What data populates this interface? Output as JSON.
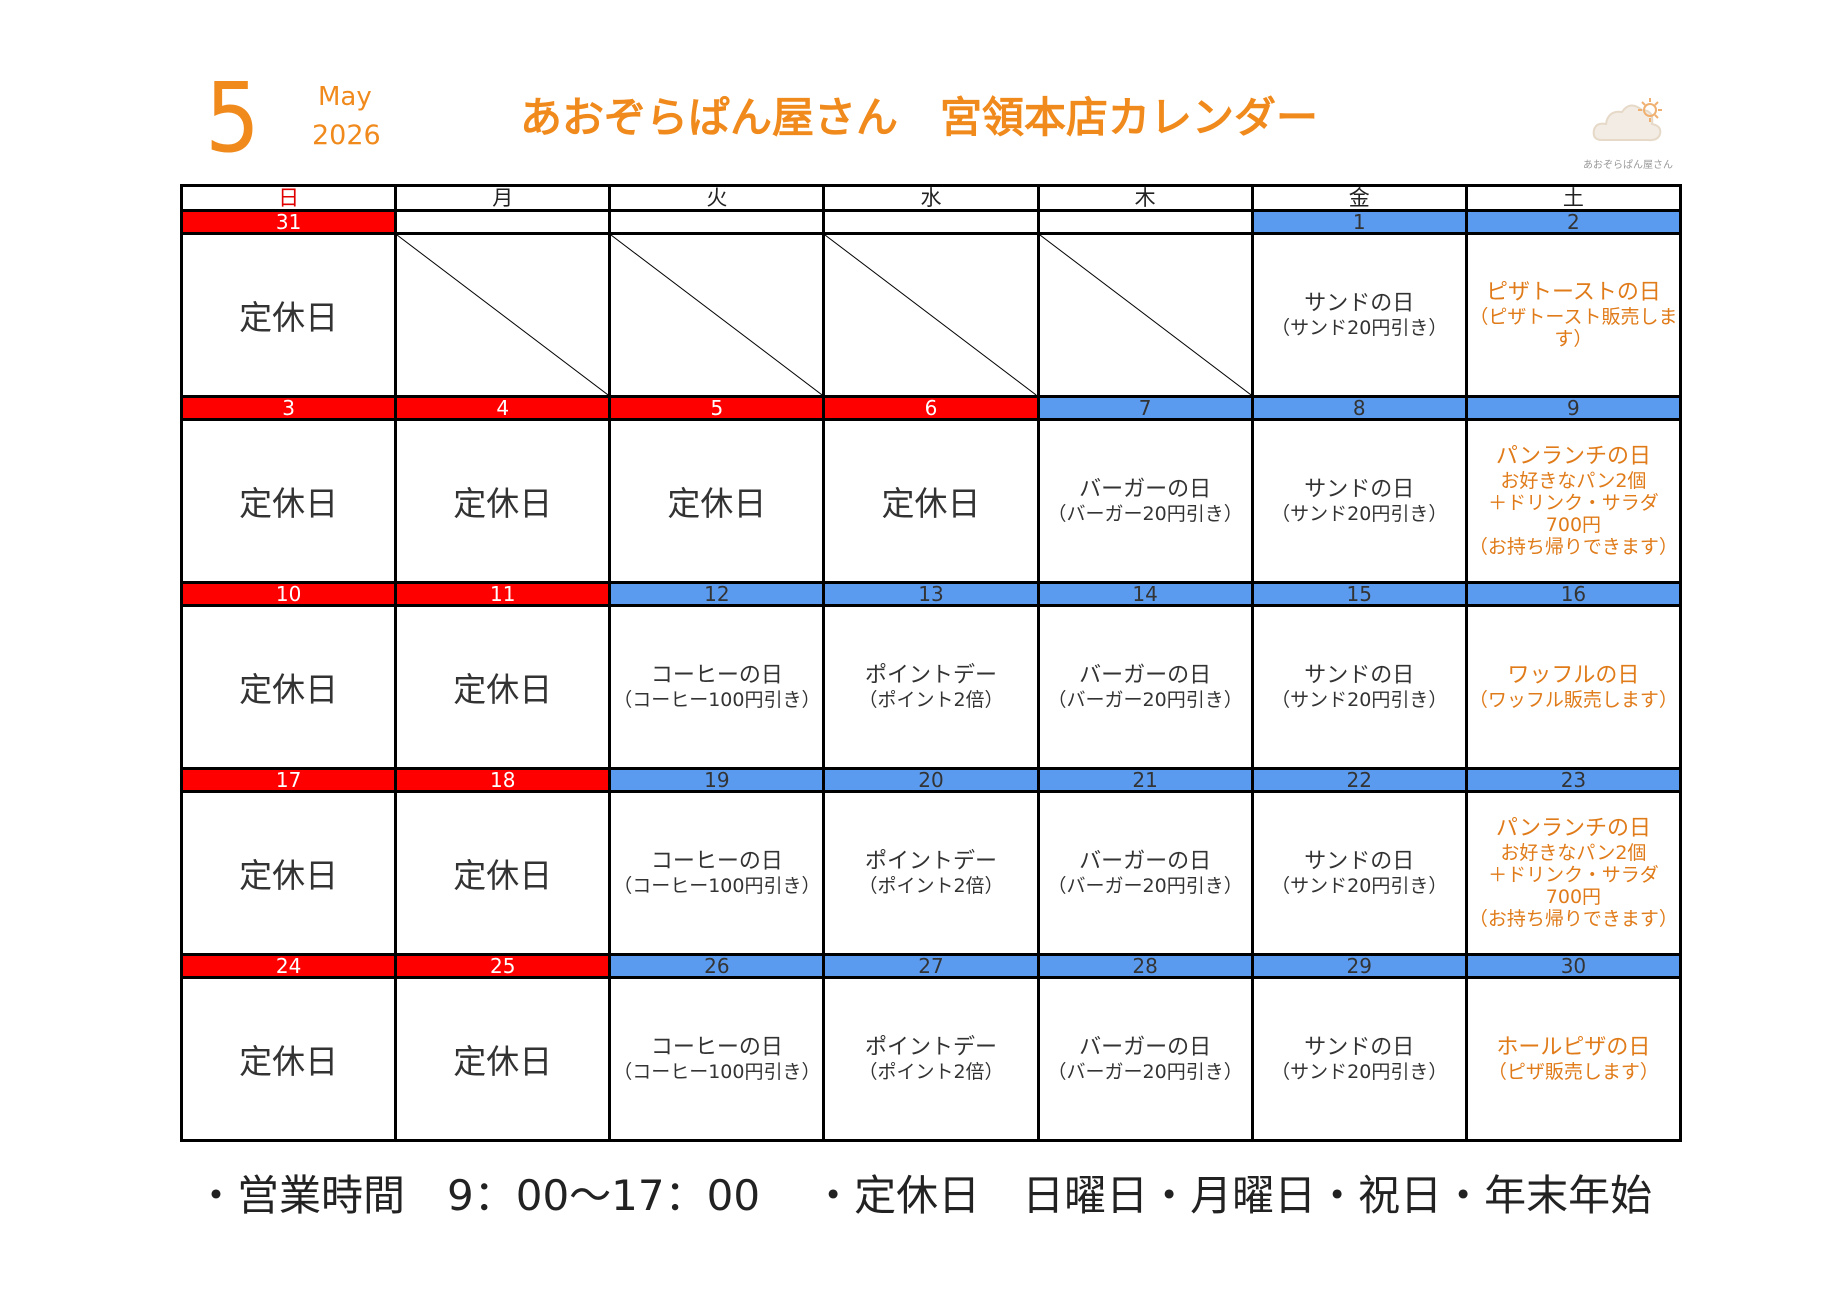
{
  "header": {
    "month": 5,
    "month_name": "May",
    "year": 2026,
    "title": "あおぞらぱん屋さん　宮領本店カレンダー",
    "logo_caption": "あおぞらぱん屋さん"
  },
  "weekdays": [
    "日",
    "月",
    "火",
    "水",
    "木",
    "金",
    "土"
  ],
  "weeks": [
    {
      "cells": [
        {
          "date": 31,
          "status": "closed",
          "lines": [
            "定休日"
          ]
        },
        {
          "status": "blank"
        },
        {
          "status": "blank"
        },
        {
          "status": "blank"
        },
        {
          "status": "blank"
        },
        {
          "date": 1,
          "status": "open",
          "lines": [
            "サンドの日",
            "（サンド20円引き）"
          ]
        },
        {
          "date": 2,
          "status": "open",
          "accent": true,
          "lines": [
            "ピザトーストの日",
            "（ピザトースト販売します）"
          ]
        }
      ]
    },
    {
      "cells": [
        {
          "date": 3,
          "status": "closed",
          "lines": [
            "定休日"
          ]
        },
        {
          "date": 4,
          "status": "closed",
          "lines": [
            "定休日"
          ]
        },
        {
          "date": 5,
          "status": "closed",
          "lines": [
            "定休日"
          ]
        },
        {
          "date": 6,
          "status": "closed",
          "lines": [
            "定休日"
          ]
        },
        {
          "date": 7,
          "status": "open",
          "lines": [
            "バーガーの日",
            "（バーガー20円引き）"
          ]
        },
        {
          "date": 8,
          "status": "open",
          "lines": [
            "サンドの日",
            "（サンド20円引き）"
          ]
        },
        {
          "date": 9,
          "status": "open",
          "accent": true,
          "lines": [
            "パンランチの日",
            "お好きなパン2個",
            "＋ドリンク・サラダ",
            "700円",
            "（お持ち帰りできます）"
          ]
        }
      ]
    },
    {
      "cells": [
        {
          "date": 10,
          "status": "closed",
          "lines": [
            "定休日"
          ]
        },
        {
          "date": 11,
          "status": "closed",
          "lines": [
            "定休日"
          ]
        },
        {
          "date": 12,
          "status": "open",
          "lines": [
            "コーヒーの日",
            "（コーヒー100円引き）"
          ]
        },
        {
          "date": 13,
          "status": "open",
          "lines": [
            "ポイントデー",
            "（ポイント2倍）"
          ]
        },
        {
          "date": 14,
          "status": "open",
          "lines": [
            "バーガーの日",
            "（バーガー20円引き）"
          ]
        },
        {
          "date": 15,
          "status": "open",
          "lines": [
            "サンドの日",
            "（サンド20円引き）"
          ]
        },
        {
          "date": 16,
          "status": "open",
          "accent": true,
          "lines": [
            "ワッフルの日",
            "（ワッフル販売します）"
          ]
        }
      ]
    },
    {
      "cells": [
        {
          "date": 17,
          "status": "closed",
          "lines": [
            "定休日"
          ]
        },
        {
          "date": 18,
          "status": "closed",
          "lines": [
            "定休日"
          ]
        },
        {
          "date": 19,
          "status": "open",
          "lines": [
            "コーヒーの日",
            "（コーヒー100円引き）"
          ]
        },
        {
          "date": 20,
          "status": "open",
          "lines": [
            "ポイントデー",
            "（ポイント2倍）"
          ]
        },
        {
          "date": 21,
          "status": "open",
          "lines": [
            "バーガーの日",
            "（バーガー20円引き）"
          ]
        },
        {
          "date": 22,
          "status": "open",
          "lines": [
            "サンドの日",
            "（サンド20円引き）"
          ]
        },
        {
          "date": 23,
          "status": "open",
          "accent": true,
          "lines": [
            "パンランチの日",
            "お好きなパン2個",
            "＋ドリンク・サラダ",
            "700円",
            "（お持ち帰りできます）"
          ]
        }
      ]
    },
    {
      "cells": [
        {
          "date": 24,
          "status": "closed",
          "lines": [
            "定休日"
          ]
        },
        {
          "date": 25,
          "status": "closed",
          "lines": [
            "定休日"
          ]
        },
        {
          "date": 26,
          "status": "open",
          "lines": [
            "コーヒーの日",
            "（コーヒー100円引き）"
          ]
        },
        {
          "date": 27,
          "status": "open",
          "lines": [
            "ポイントデー",
            "（ポイント2倍）"
          ]
        },
        {
          "date": 28,
          "status": "open",
          "lines": [
            "バーガーの日",
            "（バーガー20円引き）"
          ]
        },
        {
          "date": 29,
          "status": "open",
          "lines": [
            "サンドの日",
            "（サンド20円引き）"
          ]
        },
        {
          "date": 30,
          "status": "open",
          "accent": true,
          "lines": [
            "ホールピザの日",
            "（ピザ販売します）"
          ]
        }
      ]
    }
  ],
  "footer": [
    "・営業時間　9：00〜17：00",
    "・定休日　日曜日・月曜日・祝日・年末年始"
  ]
}
